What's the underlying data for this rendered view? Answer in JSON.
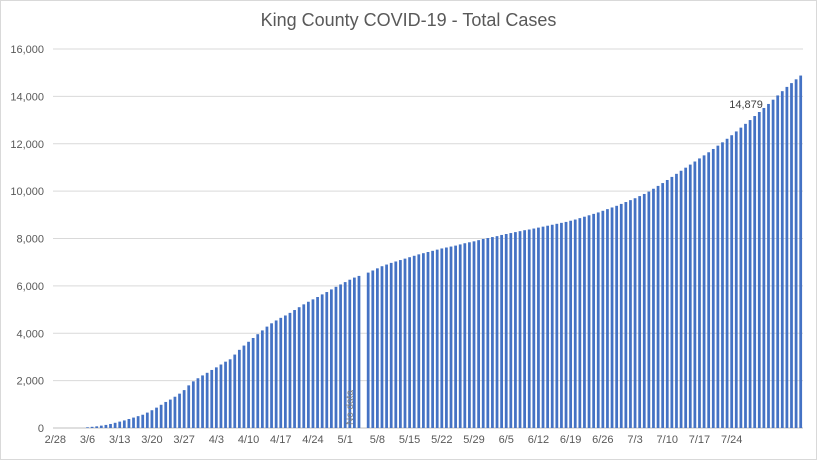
{
  "chart_data": {
    "type": "bar",
    "title": "King County COVID-19 - Total Cases",
    "xlabel": "",
    "ylabel": "",
    "ylim": [
      0,
      16000
    ],
    "y_ticks": [
      0,
      2000,
      4000,
      6000,
      8000,
      10000,
      12000,
      14000,
      16000
    ],
    "y_tick_labels": [
      "0",
      "2,000",
      "4,000",
      "6,000",
      "8,000",
      "10,000",
      "12,000",
      "14,000",
      "16,000"
    ],
    "x_tick_labels": [
      "2/28",
      "3/6",
      "3/13",
      "3/20",
      "3/27",
      "4/3",
      "4/10",
      "4/17",
      "4/24",
      "5/1",
      "5/8",
      "5/15",
      "5/22",
      "5/29",
      "6/5",
      "6/12",
      "6/19",
      "6/26",
      "7/3",
      "7/10",
      "7/17",
      "7/24"
    ],
    "start_date": "2/28",
    "grid": true,
    "color": "#4472c4",
    "annotations": [
      {
        "text": "No data",
        "date": "5/2"
      },
      {
        "text": "14,879",
        "date": "7/28"
      }
    ],
    "values": [
      0,
      0,
      0,
      0,
      0,
      0,
      0,
      30,
      50,
      70,
      100,
      130,
      170,
      220,
      270,
      320,
      380,
      440,
      500,
      560,
      650,
      750,
      860,
      980,
      1100,
      1200,
      1320,
      1450,
      1600,
      1800,
      1970,
      2100,
      2220,
      2330,
      2450,
      2560,
      2680,
      2800,
      2900,
      3100,
      3300,
      3480,
      3640,
      3800,
      3960,
      4120,
      4280,
      4420,
      4540,
      4650,
      4750,
      4860,
      4980,
      5100,
      5220,
      5330,
      5430,
      5530,
      5640,
      5740,
      5850,
      5960,
      6060,
      6160,
      6260,
      6350,
      6420,
      null,
      6560,
      6650,
      6740,
      6830,
      6900,
      6970,
      7030,
      7090,
      7150,
      7210,
      7270,
      7330,
      7380,
      7430,
      7480,
      7530,
      7580,
      7620,
      7660,
      7700,
      7750,
      7800,
      7840,
      7880,
      7930,
      7980,
      8020,
      8060,
      8100,
      8150,
      8190,
      8230,
      8270,
      8310,
      8350,
      8380,
      8420,
      8460,
      8500,
      8540,
      8580,
      8620,
      8660,
      8700,
      8750,
      8800,
      8860,
      8920,
      8980,
      9040,
      9100,
      9170,
      9240,
      9310,
      9380,
      9460,
      9540,
      9620,
      9700,
      9790,
      9880,
      9980,
      10100,
      10220,
      10340,
      10470,
      10600,
      10730,
      10860,
      10990,
      11120,
      11250,
      11380,
      11510,
      11640,
      11780,
      11920,
      12060,
      12210,
      12360,
      12520,
      12680,
      12840,
      13000,
      13170,
      13340,
      13510,
      13680,
      13860,
      14040,
      14220,
      14400,
      14560,
      14720,
      14879
    ]
  }
}
